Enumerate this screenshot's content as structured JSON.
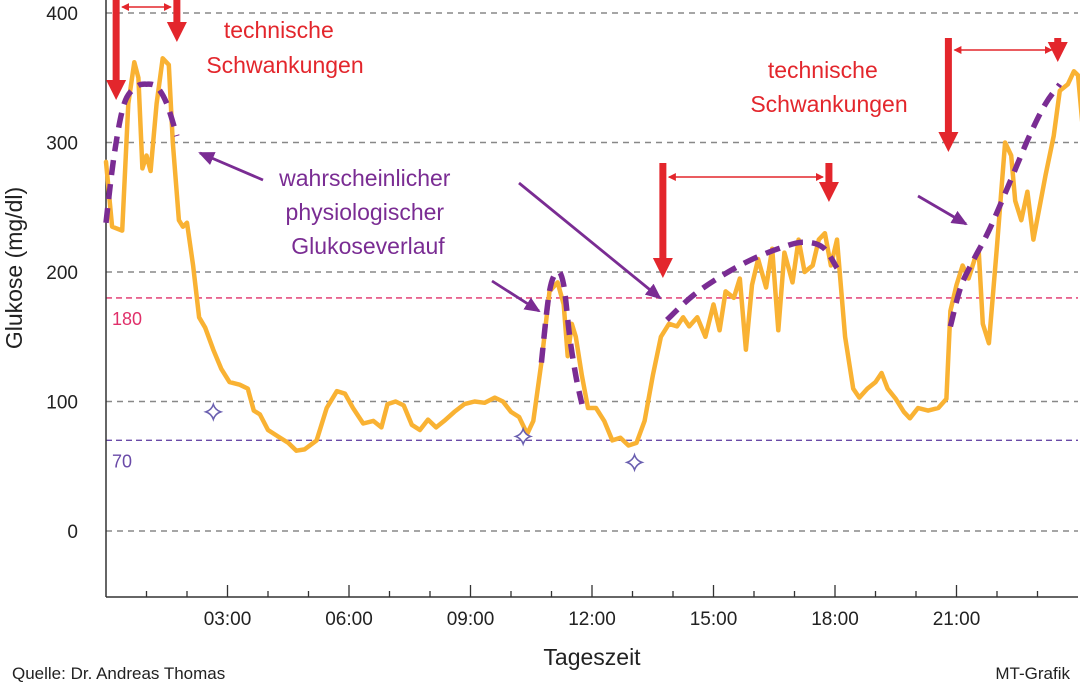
{
  "chart_data": {
    "type": "line",
    "xlabel": "Tageszeit",
    "ylabel": "Glukose (mg/dl)",
    "xlim": [
      0,
      24
    ],
    "ylim": [
      -50,
      410
    ],
    "x_ticks": [
      {
        "value": 3,
        "label": "03:00"
      },
      {
        "value": 6,
        "label": "06:00"
      },
      {
        "value": 9,
        "label": "09:00"
      },
      {
        "value": 12,
        "label": "12:00"
      },
      {
        "value": 15,
        "label": "15:00"
      },
      {
        "value": 18,
        "label": "18:00"
      },
      {
        "value": 21,
        "label": "21:00"
      }
    ],
    "y_ticks": [
      {
        "value": 0,
        "label": "0"
      },
      {
        "value": 100,
        "label": "100"
      },
      {
        "value": 200,
        "label": "200"
      },
      {
        "value": 300,
        "label": "300"
      },
      {
        "value": 400,
        "label": "400"
      }
    ],
    "reference_lines": [
      {
        "value": 180,
        "label": "180",
        "color": "#e0306a"
      },
      {
        "value": 70,
        "label": "70",
        "color": "#6a4aa8"
      }
    ],
    "series": [
      {
        "kind": "measured",
        "color": "#f9b233",
        "points": [
          [
            0.0,
            285
          ],
          [
            0.15,
            235
          ],
          [
            0.4,
            232
          ],
          [
            0.55,
            330
          ],
          [
            0.7,
            362
          ],
          [
            0.8,
            350
          ],
          [
            0.9,
            280
          ],
          [
            1.0,
            290
          ],
          [
            1.1,
            278
          ],
          [
            1.25,
            330
          ],
          [
            1.4,
            365
          ],
          [
            1.55,
            360
          ],
          [
            1.65,
            300
          ],
          [
            1.8,
            240
          ],
          [
            1.9,
            235
          ],
          [
            2.0,
            238
          ],
          [
            2.15,
            205
          ],
          [
            2.3,
            165
          ],
          [
            2.45,
            157
          ],
          [
            2.65,
            140
          ],
          [
            2.85,
            125
          ],
          [
            3.05,
            115
          ],
          [
            3.3,
            113
          ],
          [
            3.5,
            110
          ],
          [
            3.65,
            93
          ],
          [
            3.8,
            90
          ],
          [
            4.0,
            78
          ],
          [
            4.25,
            73
          ],
          [
            4.5,
            68
          ],
          [
            4.7,
            62
          ],
          [
            4.9,
            63
          ],
          [
            5.2,
            70
          ],
          [
            5.45,
            95
          ],
          [
            5.7,
            108
          ],
          [
            5.9,
            106
          ],
          [
            6.1,
            95
          ],
          [
            6.35,
            83
          ],
          [
            6.6,
            85
          ],
          [
            6.8,
            80
          ],
          [
            6.95,
            98
          ],
          [
            7.15,
            100
          ],
          [
            7.35,
            97
          ],
          [
            7.55,
            82
          ],
          [
            7.75,
            78
          ],
          [
            7.95,
            86
          ],
          [
            8.15,
            80
          ],
          [
            8.35,
            85
          ],
          [
            8.6,
            92
          ],
          [
            8.85,
            98
          ],
          [
            9.1,
            100
          ],
          [
            9.35,
            99
          ],
          [
            9.6,
            103
          ],
          [
            9.8,
            100
          ],
          [
            10.0,
            92
          ],
          [
            10.2,
            88
          ],
          [
            10.4,
            75
          ],
          [
            10.55,
            85
          ],
          [
            10.75,
            130
          ],
          [
            10.95,
            185
          ],
          [
            11.15,
            192
          ],
          [
            11.3,
            175
          ],
          [
            11.4,
            135
          ],
          [
            11.5,
            160
          ],
          [
            11.6,
            150
          ],
          [
            11.75,
            120
          ],
          [
            11.9,
            95
          ],
          [
            12.1,
            95
          ],
          [
            12.3,
            85
          ],
          [
            12.5,
            70
          ],
          [
            12.7,
            72
          ],
          [
            12.9,
            66
          ],
          [
            13.1,
            68
          ],
          [
            13.3,
            85
          ],
          [
            13.5,
            120
          ],
          [
            13.7,
            150
          ],
          [
            13.9,
            160
          ],
          [
            14.1,
            158
          ],
          [
            14.25,
            165
          ],
          [
            14.4,
            158
          ],
          [
            14.6,
            165
          ],
          [
            14.8,
            150
          ],
          [
            15.0,
            175
          ],
          [
            15.15,
            155
          ],
          [
            15.3,
            185
          ],
          [
            15.5,
            180
          ],
          [
            15.65,
            195
          ],
          [
            15.8,
            140
          ],
          [
            15.95,
            190
          ],
          [
            16.1,
            210
          ],
          [
            16.3,
            188
          ],
          [
            16.45,
            218
          ],
          [
            16.6,
            155
          ],
          [
            16.75,
            215
          ],
          [
            16.95,
            192
          ],
          [
            17.1,
            225
          ],
          [
            17.25,
            200
          ],
          [
            17.45,
            205
          ],
          [
            17.6,
            225
          ],
          [
            17.75,
            230
          ],
          [
            17.9,
            205
          ],
          [
            18.05,
            225
          ],
          [
            18.25,
            150
          ],
          [
            18.45,
            110
          ],
          [
            18.6,
            103
          ],
          [
            18.8,
            110
          ],
          [
            19.0,
            115
          ],
          [
            19.15,
            122
          ],
          [
            19.3,
            110
          ],
          [
            19.5,
            102
          ],
          [
            19.7,
            92
          ],
          [
            19.85,
            87
          ],
          [
            20.05,
            95
          ],
          [
            20.3,
            93
          ],
          [
            20.55,
            95
          ],
          [
            20.75,
            102
          ],
          [
            20.85,
            170
          ],
          [
            21.0,
            190
          ],
          [
            21.15,
            205
          ],
          [
            21.3,
            195
          ],
          [
            21.45,
            210
          ],
          [
            21.55,
            215
          ],
          [
            21.65,
            160
          ],
          [
            21.8,
            145
          ],
          [
            22.0,
            220
          ],
          [
            22.2,
            300
          ],
          [
            22.35,
            290
          ],
          [
            22.45,
            255
          ],
          [
            22.6,
            240
          ],
          [
            22.75,
            262
          ],
          [
            22.9,
            225
          ],
          [
            23.05,
            250
          ],
          [
            23.2,
            275
          ],
          [
            23.4,
            305
          ],
          [
            23.55,
            340
          ],
          [
            23.75,
            345
          ],
          [
            23.9,
            355
          ],
          [
            24.0,
            352
          ],
          [
            24.15,
            300
          ]
        ]
      },
      {
        "kind": "physiological",
        "color": "#7a2c93",
        "segments": [
          [
            [
              0.0,
              238
            ],
            [
              0.2,
              290
            ],
            [
              0.45,
              330
            ],
            [
              0.75,
              343
            ],
            [
              1.0,
              345
            ],
            [
              1.25,
              343
            ],
            [
              1.5,
              330
            ],
            [
              1.75,
              305
            ]
          ],
          [
            [
              10.75,
              130
            ],
            [
              10.95,
              185
            ],
            [
              11.15,
              200
            ],
            [
              11.3,
              190
            ],
            [
              11.45,
              150
            ],
            [
              11.6,
              120
            ],
            [
              11.75,
              98
            ]
          ],
          [
            [
              13.85,
              163
            ],
            [
              14.5,
              182
            ],
            [
              15.2,
              197
            ],
            [
              15.9,
              209
            ],
            [
              16.6,
              218
            ],
            [
              17.2,
              223
            ],
            [
              17.7,
              219
            ],
            [
              18.05,
              203
            ]
          ],
          [
            [
              20.85,
              158
            ],
            [
              21.1,
              188
            ],
            [
              21.4,
              208
            ],
            [
              21.8,
              232
            ],
            [
              22.3,
              268
            ],
            [
              22.8,
              305
            ],
            [
              23.2,
              330
            ],
            [
              23.55,
              345
            ]
          ]
        ]
      }
    ],
    "markers": [
      [
        2.65,
        92
      ],
      [
        10.3,
        73
      ],
      [
        13.05,
        53
      ]
    ],
    "period_annotations": [
      [
        0.25,
        1.75
      ],
      [
        13.75,
        17.85
      ],
      [
        20.8,
        23.5
      ]
    ],
    "annotations": {
      "technische_1": [
        "technische",
        "Schwankungen"
      ],
      "technische_2": [
        "technische",
        "Schwankungen"
      ],
      "physio": [
        "wahrscheinlicher",
        "physiologischer",
        "Glukoseverlauf"
      ]
    },
    "grid": true
  },
  "footer": {
    "source": "Quelle: Dr. Andreas Thomas",
    "credit": "MT-Grafik"
  },
  "colors": {
    "measured": "#f9b233",
    "physiological": "#7a2c93",
    "arrow_red": "#e3262c",
    "grid": "#888888"
  }
}
